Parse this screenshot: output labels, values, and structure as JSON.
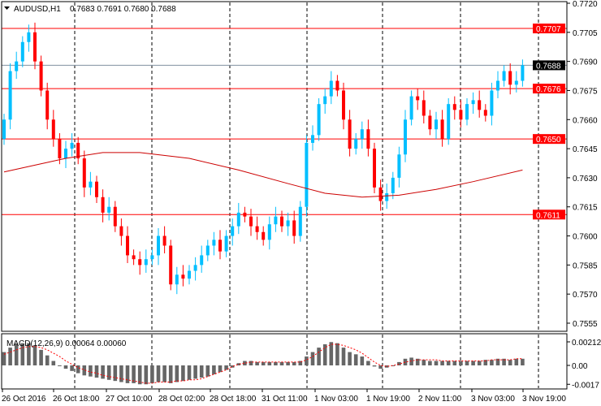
{
  "header": {
    "symbol": "AUDUSD,H1",
    "ohlc": "0.7683 0.7691 0.7680 0.7688",
    "dropdown_icon": "triangle-down-icon"
  },
  "macd": {
    "label": "MACD(12,26,9) 0.00064 0.00060"
  },
  "colors": {
    "bull": "#00BFFF",
    "bear": "#FF0000",
    "ma": "#CC0000",
    "level": "#FF0000",
    "current": "#8090A0",
    "hist": "#666666",
    "signal": "#FF0000"
  },
  "chart_data": {
    "type": "candlestick",
    "price_ticks": [
      "0.7720",
      "0.7705",
      "0.7690",
      "0.7675",
      "0.7660",
      "0.7645",
      "0.7630",
      "0.7615",
      "0.7600",
      "0.7585",
      "0.7570",
      "0.7555"
    ],
    "price_range": [
      0.7555,
      0.772
    ],
    "levels": [
      {
        "value": 0.7707,
        "label": "0.7707",
        "kind": "level"
      },
      {
        "value": 0.7688,
        "label": "0.7688",
        "kind": "current"
      },
      {
        "value": 0.7676,
        "label": "0.7676",
        "kind": "level"
      },
      {
        "value": 0.765,
        "label": "0.7650",
        "kind": "level"
      },
      {
        "value": 0.7611,
        "label": "0.7611",
        "kind": "level"
      }
    ],
    "time_labels": [
      "26 Oct 2016",
      "26 Oct 18:00",
      "27 Oct 10:00",
      "28 Oct 02:00",
      "28 Oct 18:00",
      "31 Oct 11:00",
      "1 Nov 03:00",
      "1 Nov 19:00",
      "2 Nov 11:00",
      "3 Nov 03:00",
      "3 Nov 19:00"
    ],
    "open_first": 0.765,
    "closes": [
      0.766,
      0.7685,
      0.769,
      0.77,
      0.7705,
      0.769,
      0.7675,
      0.766,
      0.765,
      0.764,
      0.7645,
      0.7648,
      0.764,
      0.7625,
      0.7628,
      0.762,
      0.7612,
      0.7615,
      0.7605,
      0.76,
      0.759,
      0.7588,
      0.7585,
      0.7588,
      0.759,
      0.76,
      0.7595,
      0.7575,
      0.758,
      0.7578,
      0.7582,
      0.7585,
      0.759,
      0.7595,
      0.7598,
      0.7592,
      0.76,
      0.7605,
      0.7612,
      0.761,
      0.7605,
      0.7602,
      0.7598,
      0.7606,
      0.761,
      0.7605,
      0.7608,
      0.76,
      0.7615,
      0.7648,
      0.7652,
      0.7668,
      0.7672,
      0.768,
      0.7675,
      0.766,
      0.7645,
      0.765,
      0.7655,
      0.7645,
      0.7625,
      0.7618,
      0.7622,
      0.763,
      0.7642,
      0.766,
      0.7672,
      0.767,
      0.7662,
      0.7655,
      0.766,
      0.765,
      0.7668,
      0.7665,
      0.766,
      0.7668,
      0.767,
      0.7665,
      0.7662,
      0.7675,
      0.768,
      0.7685,
      0.7678,
      0.768,
      0.7688
    ],
    "moving_average": [
      [
        0,
        0.7633
      ],
      [
        10,
        0.764
      ],
      [
        16,
        0.7643
      ],
      [
        22,
        0.7643
      ],
      [
        30,
        0.764
      ],
      [
        38,
        0.7634
      ],
      [
        46,
        0.7627
      ],
      [
        52,
        0.7622
      ],
      [
        58,
        0.762
      ],
      [
        64,
        0.7621
      ],
      [
        70,
        0.7624
      ],
      [
        76,
        0.7628
      ],
      [
        84,
        0.7634
      ]
    ],
    "macd_ticks": [
      "0.00212",
      "0.00",
      "-0.0017"
    ],
    "macd_range": [
      -0.0017,
      0.00212
    ],
    "macd_histogram": [
      0.0012,
      0.0016,
      0.0019,
      0.002,
      0.002,
      0.0018,
      0.0014,
      0.0009,
      0.0004,
      0.0,
      -0.0003,
      -0.0005,
      -0.0007,
      -0.0009,
      -0.001,
      -0.0011,
      -0.0012,
      -0.0013,
      -0.0014,
      -0.0015,
      -0.0016,
      -0.0016,
      -0.0017,
      -0.0017,
      -0.0016,
      -0.0015,
      -0.0015,
      -0.0016,
      -0.0015,
      -0.0014,
      -0.0013,
      -0.0012,
      -0.0011,
      -0.001,
      -0.0008,
      -0.0006,
      -0.0004,
      -0.0002,
      0.0002,
      0.0004,
      0.0004,
      0.0003,
      0.0003,
      0.0003,
      0.0003,
      0.0003,
      0.0003,
      0.0003,
      0.0004,
      0.0008,
      0.0012,
      0.0016,
      0.0019,
      0.0021,
      0.002,
      0.0016,
      0.0012,
      0.001,
      0.0008,
      0.0004,
      -0.0001,
      -0.0003,
      -0.0002,
      0.0,
      0.0003,
      0.0006,
      0.0007,
      0.0006,
      0.0005,
      0.0004,
      0.0004,
      0.0004,
      0.0004,
      0.0004,
      0.0004,
      0.0004,
      0.0004,
      0.0004,
      0.0005,
      0.0005,
      0.0006,
      0.0006,
      0.0005,
      0.0006,
      0.0006
    ],
    "macd_signal": [
      0.001,
      0.0012,
      0.0014,
      0.0016,
      0.0017,
      0.0017,
      0.0016,
      0.0014,
      0.0011,
      0.0008,
      0.0004,
      0.0001,
      -0.0002,
      -0.0004,
      -0.0006,
      -0.0007,
      -0.0009,
      -0.001,
      -0.0011,
      -0.0012,
      -0.0013,
      -0.0014,
      -0.0015,
      -0.0016,
      -0.0016,
      -0.0015,
      -0.0015,
      -0.0015,
      -0.0014,
      -0.0014,
      -0.0013,
      -0.0013,
      -0.0012,
      -0.001,
      -0.0008,
      -0.0006,
      -0.0004,
      -0.0001,
      0.0001,
      0.0002,
      0.0003,
      0.0003,
      0.0003,
      0.0003,
      0.0003,
      0.0003,
      0.0003,
      0.0003,
      0.0003,
      0.0005,
      0.0008,
      0.0012,
      0.0016,
      0.0019,
      0.0019,
      0.0018,
      0.0016,
      0.0014,
      0.0011,
      0.0007,
      0.0003,
      0.0,
      -0.0001,
      0.0,
      0.0001,
      0.0003,
      0.0004,
      0.0005,
      0.0005,
      0.0005,
      0.0005,
      0.0004,
      0.0004,
      0.0004,
      0.0004,
      0.0004,
      0.0004,
      0.0004,
      0.0004,
      0.0005,
      0.0005,
      0.0005,
      0.0005,
      0.0006,
      0.0006
    ]
  }
}
